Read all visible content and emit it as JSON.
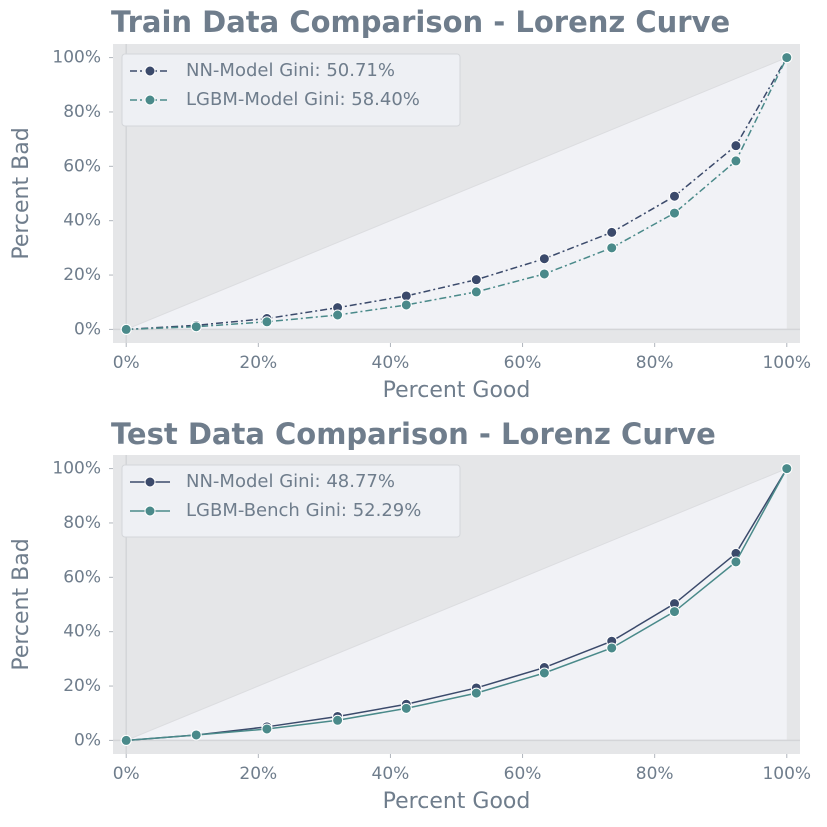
{
  "chart_data": [
    {
      "type": "line",
      "title": "Train Data Comparison - Lorenz Curve",
      "xlabel": "Percent Good",
      "ylabel": "Percent Bad",
      "x": [
        0,
        10.6,
        21.3,
        32,
        42.4,
        53,
        63.3,
        73.5,
        83,
        92.3,
        100
      ],
      "series": [
        {
          "name": "NN-Model Gini: 50.71%",
          "color": "#3b4a6b",
          "values": [
            0,
            1.5,
            4,
            8,
            12.3,
            18.3,
            26,
            35.7,
            49,
            67.6,
            100
          ]
        },
        {
          "name": "LGBM-Model Gini: 58.40%",
          "color": "#4a8a8a",
          "values": [
            0,
            1,
            2.8,
            5.3,
            9,
            13.8,
            20.4,
            30,
            42.8,
            62,
            100
          ]
        }
      ],
      "linestyle": "dashdot",
      "legend": "upper left",
      "xlim": [
        -2,
        102
      ],
      "ylim": [
        -5,
        105
      ],
      "xticks": [
        {
          "value": 0,
          "label": "0%"
        },
        {
          "value": 20,
          "label": "20%"
        },
        {
          "value": 40,
          "label": "40%"
        },
        {
          "value": 60,
          "label": "60%"
        },
        {
          "value": 80,
          "label": "80%"
        },
        {
          "value": 100,
          "label": "100%"
        }
      ],
      "yticks": [
        {
          "value": 0,
          "label": "0%"
        },
        {
          "value": 20,
          "label": "20%"
        },
        {
          "value": 40,
          "label": "40%"
        },
        {
          "value": 60,
          "label": "60%"
        },
        {
          "value": 80,
          "label": "80%"
        },
        {
          "value": 100,
          "label": "100%"
        }
      ]
    },
    {
      "type": "line",
      "title": "Test Data Comparison - Lorenz Curve",
      "xlabel": "Percent Good",
      "ylabel": "Percent Bad",
      "x": [
        0,
        10.6,
        21.3,
        32,
        42.4,
        53,
        63.3,
        73.5,
        83,
        92.3,
        100
      ],
      "series": [
        {
          "name": "NN-Model Gini: 48.77%",
          "color": "#3b4a6b",
          "values": [
            0,
            2,
            5,
            8.8,
            13.3,
            19.3,
            26.8,
            36.5,
            50.3,
            68.8,
            100
          ]
        },
        {
          "name": "LGBM-Bench Gini: 52.29%",
          "color": "#4a8a8a",
          "values": [
            0,
            2,
            4.2,
            7.4,
            11.8,
            17.4,
            24.8,
            34,
            47.4,
            65.7,
            100
          ]
        }
      ],
      "linestyle": "solid",
      "legend": "upper left",
      "xlim": [
        -2,
        102
      ],
      "ylim": [
        -5,
        105
      ],
      "xticks": [
        {
          "value": 0,
          "label": "0%"
        },
        {
          "value": 20,
          "label": "20%"
        },
        {
          "value": 40,
          "label": "40%"
        },
        {
          "value": 60,
          "label": "60%"
        },
        {
          "value": 80,
          "label": "80%"
        },
        {
          "value": 100,
          "label": "100%"
        }
      ],
      "yticks": [
        {
          "value": 0,
          "label": "0%"
        },
        {
          "value": 20,
          "label": "20%"
        },
        {
          "value": 40,
          "label": "40%"
        },
        {
          "value": 60,
          "label": "60%"
        },
        {
          "value": 80,
          "label": "80%"
        },
        {
          "value": 100,
          "label": "100%"
        }
      ]
    }
  ]
}
